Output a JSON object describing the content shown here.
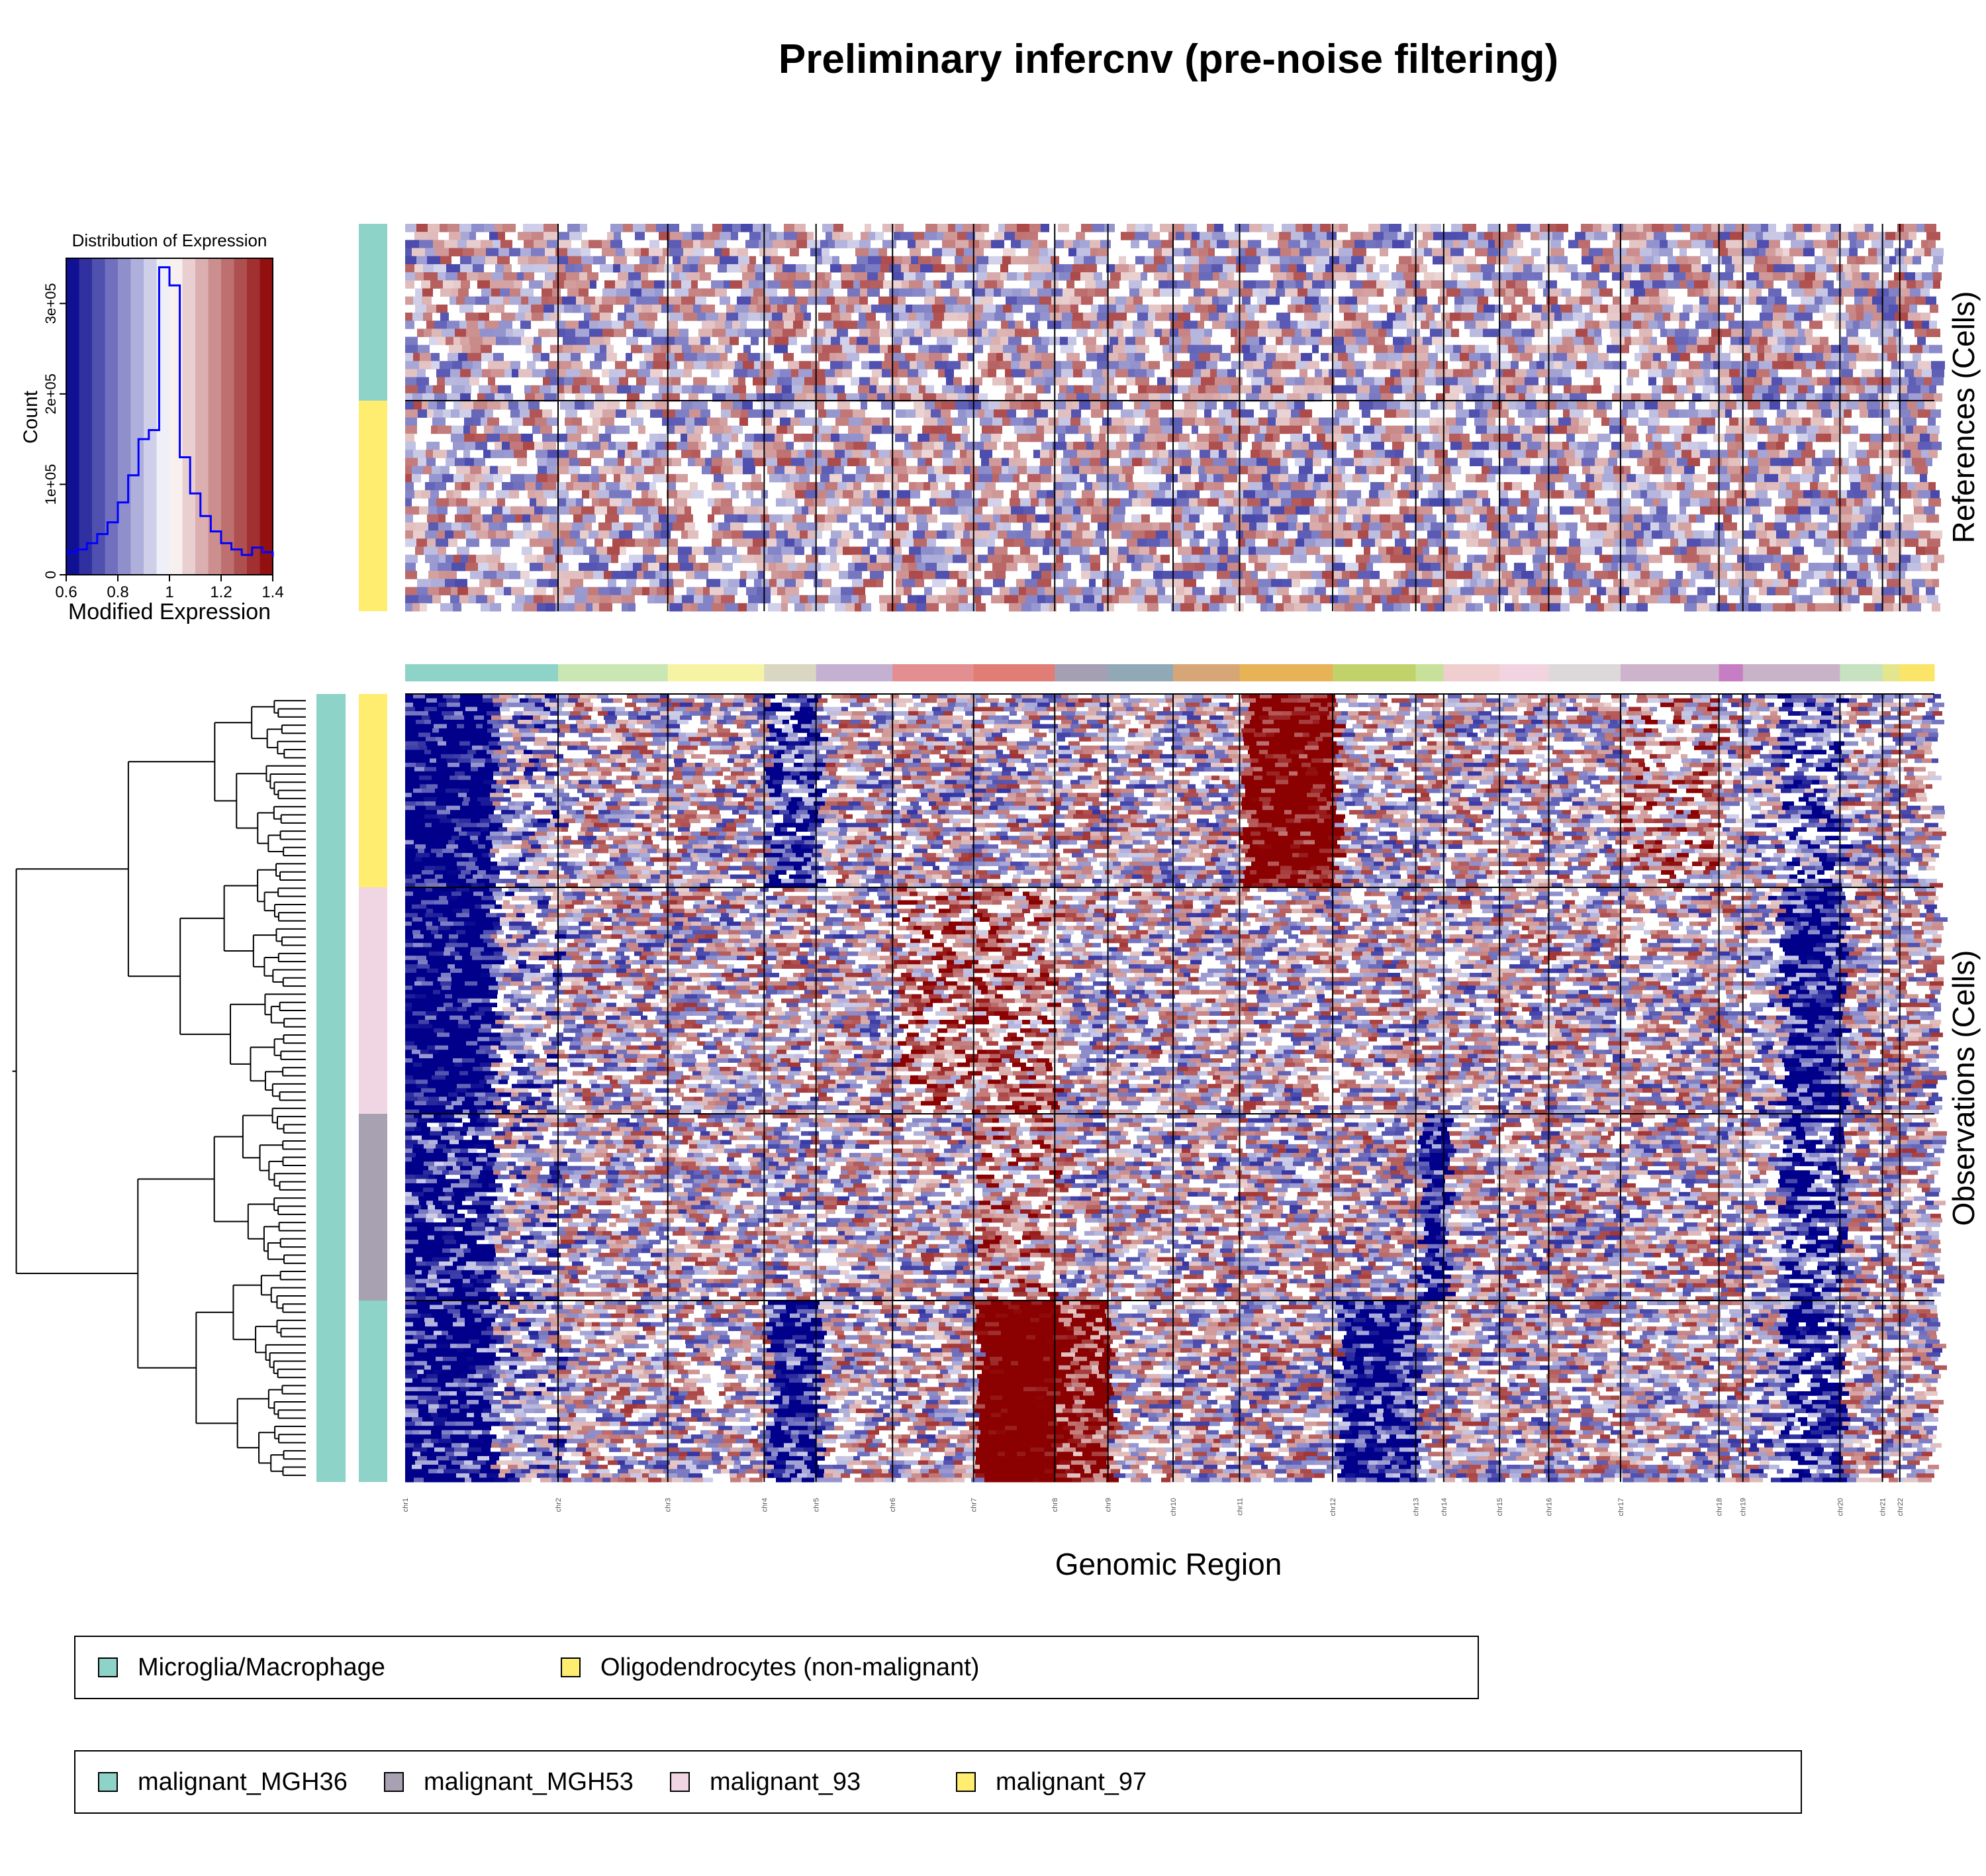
{
  "title": "Preliminary infercnv (pre-noise filtering)",
  "colors": {
    "low": "#00008B",
    "mid": "#FFFFFF",
    "high": "#8B0000",
    "histogram_line": "#0000FF",
    "boundary": "#000000"
  },
  "histogram": {
    "title": "Distribution of Expression",
    "xlabel": "Modified Expression",
    "ylabel": "Count",
    "xticks": [
      "0.6",
      "0.8",
      "1",
      "1.2",
      "1.4"
    ],
    "yticks": [
      "0",
      "1e+05",
      "2e+05",
      "3e+05"
    ]
  },
  "heatmap": {
    "references_label": "References (Cells)",
    "observations_label": "Observations (Cells)",
    "xlabel": "Genomic Region",
    "chromosomes": [
      "chr1",
      "chr2",
      "chr3",
      "chr4",
      "chr5",
      "chr6",
      "chr7",
      "chr8",
      "chr9",
      "chr10",
      "chr11",
      "chr12",
      "chr13",
      "chr14",
      "chr15",
      "chr16",
      "chr17",
      "chr18",
      "chr19",
      "chr20",
      "chr21",
      "chr22"
    ]
  },
  "legend_references": [
    {
      "label": "Microglia/Macrophage",
      "color": "#8DD3C7"
    },
    {
      "label": "Oligodendrocytes (non-malignant)",
      "color": "#FFED6F"
    }
  ],
  "legend_observations": [
    {
      "label": "malignant_MGH36",
      "color": "#8DD3C7"
    },
    {
      "label": "malignant_MGH53",
      "color": "#A8A1B1"
    },
    {
      "label": "malignant_93",
      "color": "#F0D5E2"
    },
    {
      "label": "malignant_97",
      "color": "#FFED6F"
    }
  ],
  "chart_data": [
    {
      "type": "area",
      "title": "Distribution of Expression",
      "xlabel": "Modified Expression",
      "ylabel": "Count",
      "xlim": [
        0.6,
        1.4
      ],
      "ylim": [
        0,
        350000
      ],
      "x": [
        0.6,
        0.64,
        0.68,
        0.72,
        0.76,
        0.8,
        0.84,
        0.88,
        0.92,
        0.96,
        1.0,
        1.04,
        1.08,
        1.12,
        1.16,
        1.2,
        1.24,
        1.28,
        1.32,
        1.36,
        1.4
      ],
      "values": [
        25000,
        28000,
        35000,
        45000,
        58000,
        80000,
        110000,
        150000,
        160000,
        340000,
        320000,
        130000,
        90000,
        65000,
        48000,
        35000,
        28000,
        22000,
        30000,
        25000,
        20000
      ]
    },
    {
      "type": "heatmap",
      "xlabel": "Genomic Region",
      "categories": [
        "chr1",
        "chr2",
        "chr3",
        "chr4",
        "chr5",
        "chr6",
        "chr7",
        "chr8",
        "chr9",
        "chr10",
        "chr11",
        "chr12",
        "chr13",
        "chr14",
        "chr15",
        "chr16",
        "chr17",
        "chr18",
        "chr19",
        "chr20",
        "chr21",
        "chr22"
      ],
      "references": [
        "Microglia/Macrophage",
        "Oligodendrocytes (non-malignant)"
      ],
      "observations": [
        "malignant_97",
        "malignant_93",
        "malignant_MGH53",
        "malignant_MGH36"
      ],
      "color_range": [
        0.6,
        1.4
      ]
    }
  ]
}
